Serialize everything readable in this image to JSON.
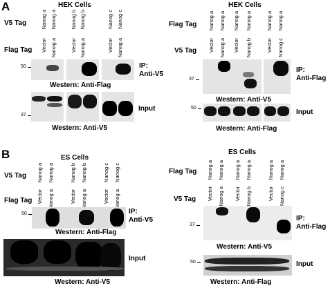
{
  "panels": [
    {
      "letter": "A",
      "title": "HEK Cells"
    },
    {
      "letter": "",
      "title": "HEK Cells"
    },
    {
      "letter": "B",
      "title": "ES Cells"
    },
    {
      "letter": "",
      "title": "ES Cells"
    }
  ],
  "tags": {
    "v5": "V5 Tag",
    "flag": "Flag Tag"
  },
  "lanes": {
    "top": [
      "Nanog a",
      "",
      "Nanog a",
      "",
      "Nanog a",
      ""
    ],
    "a_left_v5": [
      "Nanog a",
      "Nanog a",
      "Nanog b",
      "Nanog b",
      "Nanog c",
      "Nanog c"
    ],
    "a_left_flag": [
      "Vector",
      "Nanog a",
      "Vector",
      "Nanog a",
      "Vector",
      "Nanog a"
    ],
    "a_right_flag": [
      "Nanog a",
      "Nanog a",
      "Nanog a",
      "Nanog a",
      "Nanog a",
      "Nanog a"
    ],
    "a_right_v5": [
      "Vector",
      "Nanog a",
      "Vector",
      "Nanog b",
      "Vector",
      "Nanog c"
    ]
  },
  "labels": {
    "ip_v5": "IP:\nAnti-V5",
    "ip_flag": "IP:\nAnti-Flag",
    "western_flag": "Western: Anti-Flag",
    "western_v5": "Western: Anti-V5",
    "input": "Input"
  },
  "mw": {
    "m50": "50",
    "m37": "37"
  }
}
